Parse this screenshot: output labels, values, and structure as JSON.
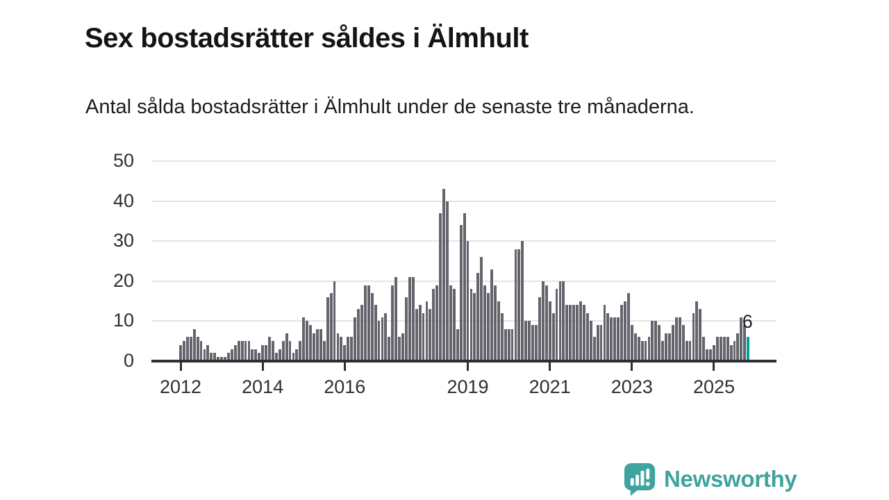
{
  "header": {
    "title": "Sex bostadsrätter såldes i Älmhult",
    "subtitle": "Antal sålda bostadsrätter i Älmhult under de senaste tre månaderna."
  },
  "chart_data": {
    "type": "bar",
    "title": "Sex bostadsrätter såldes i Älmhult",
    "subtitle": "Antal sålda bostadsrätter i Älmhult under de senaste tre månaderna.",
    "xlabel": "",
    "ylabel": "",
    "start_year": 2012,
    "start_month": "2012-01",
    "frequency": "monthly",
    "ylim": [
      0,
      50
    ],
    "yticks": [
      0,
      10,
      20,
      30,
      40,
      50
    ],
    "xticks": [
      2012,
      2014,
      2016,
      2019,
      2021,
      2023,
      2025
    ],
    "grid": "horizontal",
    "bar_color": "#64646c",
    "highlight_color": "#00a0a0",
    "highlight_index": 166,
    "annotation": "6",
    "annotation_value": 6,
    "values": [
      4,
      5,
      6,
      6,
      8,
      6,
      5,
      3,
      4,
      2,
      2,
      1,
      1,
      1,
      2,
      3,
      4,
      5,
      5,
      5,
      5,
      3,
      3,
      2,
      4,
      4,
      6,
      5,
      2,
      3,
      5,
      7,
      5,
      2,
      3,
      5,
      11,
      10,
      9,
      7,
      8,
      8,
      5,
      16,
      17,
      20,
      7,
      6,
      4,
      6,
      6,
      11,
      13,
      14,
      19,
      19,
      17,
      14,
      10,
      11,
      12,
      6,
      19,
      21,
      6,
      7,
      16,
      21,
      21,
      13,
      14,
      12,
      15,
      13,
      18,
      19,
      37,
      43,
      40,
      19,
      18,
      8,
      34,
      37,
      30,
      18,
      17,
      22,
      26,
      19,
      17,
      23,
      19,
      15,
      12,
      8,
      8,
      8,
      28,
      28,
      30,
      10,
      10,
      9,
      9,
      16,
      20,
      19,
      15,
      12,
      18,
      20,
      20,
      14,
      14,
      14,
      14,
      15,
      14,
      12,
      10,
      6,
      9,
      9,
      14,
      12,
      11,
      11,
      11,
      14,
      15,
      17,
      9,
      7,
      6,
      5,
      5,
      6,
      10,
      10,
      9,
      5,
      7,
      7,
      9,
      11,
      11,
      9,
      5,
      5,
      12,
      15,
      13,
      6,
      3,
      3,
      4,
      6,
      6,
      6,
      6,
      4,
      5,
      7,
      11,
      9,
      6
    ]
  },
  "branding": {
    "logo_text": "Newsworthy",
    "logo_color": "#3ea49d"
  }
}
